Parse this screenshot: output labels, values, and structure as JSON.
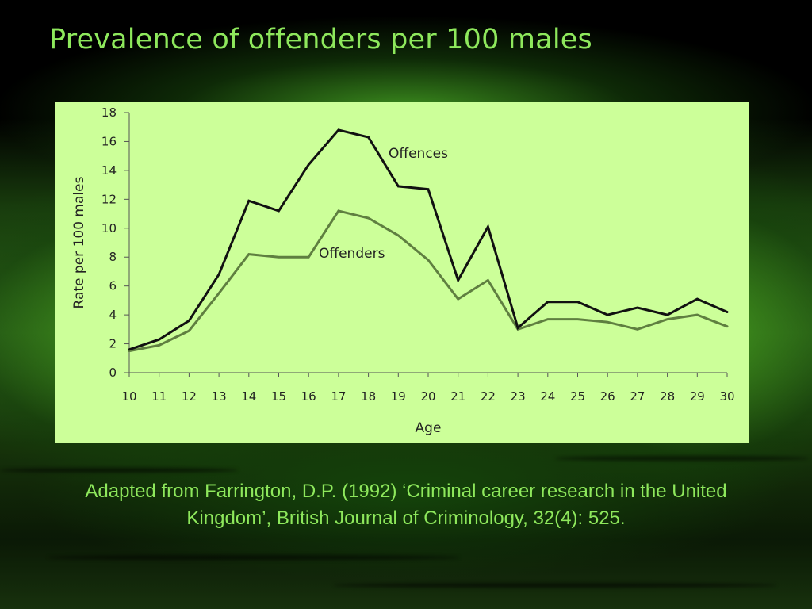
{
  "slide": {
    "title": "Prevalence of offenders per 100 males",
    "caption": "Adapted from Farrington, D.P. (1992) ‘Criminal career research in the United Kingdom’, British Journal of Criminology, 32(4): 525."
  },
  "colors": {
    "title_text": "#8ee85c",
    "chart_background": "#ccff99",
    "offences_line": "#111111",
    "offenders_line": "#5f7f40"
  },
  "chart_data": {
    "type": "line",
    "xlabel": "Age",
    "ylabel": "Rate per 100 males",
    "x": [
      10,
      11,
      12,
      13,
      14,
      15,
      16,
      17,
      18,
      19,
      20,
      21,
      22,
      23,
      24,
      25,
      26,
      27,
      28,
      29,
      30
    ],
    "xlim": [
      10,
      30
    ],
    "ylim": [
      0,
      18
    ],
    "yticks": [
      0,
      2,
      4,
      6,
      8,
      10,
      12,
      14,
      16,
      18
    ],
    "grid": false,
    "legend": "inline labels",
    "series": [
      {
        "name": "Offences",
        "color": "#111111",
        "values": [
          1.6,
          2.3,
          3.6,
          6.8,
          11.9,
          11.2,
          14.4,
          16.8,
          16.3,
          12.9,
          12.7,
          6.4,
          10.1,
          3.1,
          4.9,
          4.9,
          4.0,
          4.5,
          4.0,
          5.1,
          4.2
        ]
      },
      {
        "name": "Offenders",
        "color": "#5f7f40",
        "values": [
          1.5,
          1.9,
          2.9,
          5.5,
          8.2,
          8.0,
          8.0,
          11.2,
          10.7,
          9.5,
          7.8,
          5.1,
          6.4,
          3.0,
          3.7,
          3.7,
          3.5,
          3.0,
          3.7,
          4.0,
          3.2
        ]
      }
    ]
  }
}
